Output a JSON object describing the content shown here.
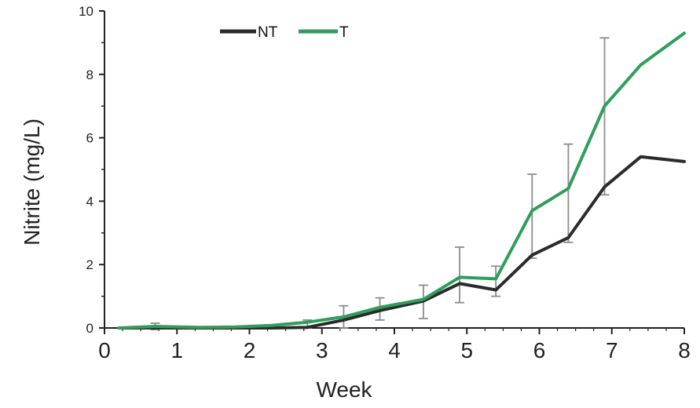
{
  "chart_data": {
    "type": "line",
    "title": "",
    "xlabel": "Week",
    "ylabel": "Nitrite (mg/L)",
    "xlim": [
      0,
      8
    ],
    "ylim": [
      0,
      10
    ],
    "x_ticks": [
      "0",
      "1",
      "2",
      "3",
      "4",
      "5",
      "6",
      "7",
      "8"
    ],
    "y_ticks": [
      "0",
      "2",
      "4",
      "6",
      "8",
      "10"
    ],
    "grid": false,
    "legend": "top-left",
    "colors": {
      "NT": "#2b2b2b",
      "T": "#2e9e5b",
      "error_bar": "#8c8c8c",
      "axis": "#222222"
    },
    "series": [
      {
        "name": "NT",
        "x": [
          0.2,
          0.7,
          1.3,
          1.8,
          2.3,
          2.8,
          3.3,
          3.8,
          4.4,
          4.9,
          5.4,
          5.9,
          6.4,
          6.9,
          7.4,
          8.0
        ],
        "values": [
          0.0,
          0.0,
          0.0,
          0.0,
          0.0,
          0.02,
          0.25,
          0.55,
          0.85,
          1.4,
          1.2,
          2.3,
          2.85,
          4.45,
          5.4,
          5.25
        ]
      },
      {
        "name": "T",
        "x": [
          0.2,
          0.7,
          1.3,
          1.8,
          2.3,
          2.8,
          3.3,
          3.8,
          4.4,
          4.9,
          5.4,
          5.9,
          6.4,
          6.9,
          7.4,
          8.0
        ],
        "values": [
          0.0,
          0.05,
          0.02,
          0.03,
          0.08,
          0.18,
          0.35,
          0.65,
          0.9,
          1.6,
          1.55,
          3.7,
          4.4,
          7.0,
          8.3,
          9.3
        ]
      }
    ],
    "error_bars": [
      {
        "x": 0.7,
        "low": -0.05,
        "high": 0.15
      },
      {
        "x": 2.8,
        "low": 0.0,
        "high": 0.25
      },
      {
        "x": 3.3,
        "low": 0.0,
        "high": 0.7
      },
      {
        "x": 3.8,
        "low": 0.25,
        "high": 0.95
      },
      {
        "x": 4.4,
        "low": 0.3,
        "high": 1.35
      },
      {
        "x": 4.9,
        "low": 0.8,
        "high": 2.55
      },
      {
        "x": 5.4,
        "low": 1.0,
        "high": 1.95
      },
      {
        "x": 5.9,
        "low": 2.2,
        "high": 4.85
      },
      {
        "x": 6.4,
        "low": 2.7,
        "high": 5.8
      },
      {
        "x": 6.9,
        "low": 4.2,
        "high": 9.15
      }
    ]
  }
}
